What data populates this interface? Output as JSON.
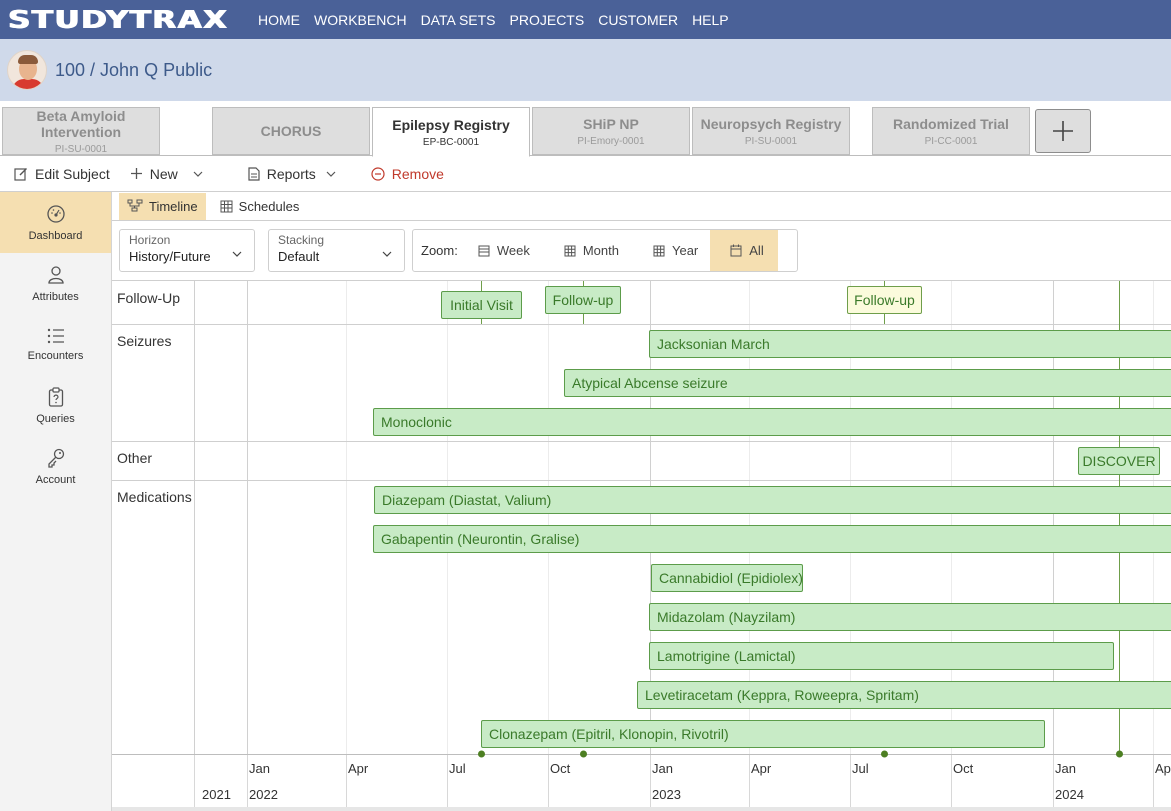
{
  "app": {
    "logo": "STUDYTRAX",
    "nav": [
      "HOME",
      "WORKBENCH",
      "DATA SETS",
      "PROJECTS",
      "CUSTOMER",
      "HELP"
    ]
  },
  "subject": {
    "title": "100 / John Q Public"
  },
  "studies": [
    {
      "name": "Beta Amyloid Intervention",
      "code": "PI-SU-0001",
      "active": false
    },
    {
      "name": "CHORUS",
      "code": "",
      "active": false
    },
    {
      "name": "Epilepsy Registry",
      "code": "EP-BC-0001",
      "active": true
    },
    {
      "name": "SHiP NP",
      "code": "PI-Emory-0001",
      "active": false
    },
    {
      "name": "Neuropsych Registry",
      "code": "PI-SU-0001",
      "active": false
    },
    {
      "name": "Randomized Trial",
      "code": "PI-CC-0001",
      "active": false
    }
  ],
  "toolbar": {
    "edit": "Edit Subject",
    "new": "New",
    "reports": "Reports",
    "remove": "Remove"
  },
  "sidebar": [
    {
      "label": "Dashboard",
      "icon": "dashboard-icon",
      "active": true
    },
    {
      "label": "Attributes",
      "icon": "person-icon",
      "active": false
    },
    {
      "label": "Encounters",
      "icon": "list-icon",
      "active": false
    },
    {
      "label": "Queries",
      "icon": "clipboard-question-icon",
      "active": false
    },
    {
      "label": "Account",
      "icon": "key-icon",
      "active": false
    }
  ],
  "view_tabs": [
    {
      "label": "Timeline",
      "icon": "timeline-icon",
      "active": true
    },
    {
      "label": "Schedules",
      "icon": "table-icon",
      "active": false
    }
  ],
  "controls": {
    "horizon": {
      "label": "Horizon",
      "value": "History/Future"
    },
    "stacking": {
      "label": "Stacking",
      "value": "Default"
    },
    "zoom": {
      "label": "Zoom:",
      "options": [
        "Week",
        "Month",
        "Year",
        "All"
      ],
      "selected": "All"
    }
  },
  "timeline": {
    "rows": [
      "Follow-Up",
      "Seizures",
      "Other",
      "Medications"
    ],
    "month_labels": [
      "Jan",
      "Apr",
      "Jul",
      "Oct",
      "Jan",
      "Apr",
      "Jul",
      "Oct",
      "Jan",
      "Ap"
    ],
    "year_labels": [
      "2021",
      "2022",
      "2023",
      "2024"
    ],
    "events": [
      {
        "label": "Initial Visit",
        "date": "2022-08-01",
        "future": false
      },
      {
        "label": "Follow-up",
        "date": "2022-11-01",
        "future": false
      },
      {
        "label": "Follow-up",
        "date": "2023-08-01",
        "future": true
      },
      {
        "label": "DISCOVER",
        "date": "2024-03-01",
        "future": false
      }
    ],
    "seizures": [
      {
        "label": "Jacksonian March",
        "start": "2022-12-31"
      },
      {
        "label": "Atypical Abcense seizure",
        "start": "2022-10-15"
      },
      {
        "label": "Monoclonic",
        "start": "2022-04-25"
      }
    ],
    "medications": [
      {
        "label": "Diazepam (Diastat, Valium)",
        "start": "2022-04-26"
      },
      {
        "label": "Gabapentin (Neurontin, Gralise)",
        "start": "2022-04-25"
      },
      {
        "label": "Cannabidiol (Epidiolex)",
        "start": "2023-01-02",
        "end": "2023-05-20"
      },
      {
        "label": "Midazolam (Nayzilam)",
        "start": "2022-12-31"
      },
      {
        "label": "Lamotrigine (Lamictal)",
        "start": "2022-12-31",
        "end": "2024-02-25"
      },
      {
        "label": "Levetiracetam (Keppra, Roweepra, Spritam)",
        "start": "2022-12-20"
      },
      {
        "label": "Clonazepam (Epitril, Klonopin, Rivotril)",
        "start": "2022-08-01",
        "end": "2023-12-25"
      }
    ]
  }
}
